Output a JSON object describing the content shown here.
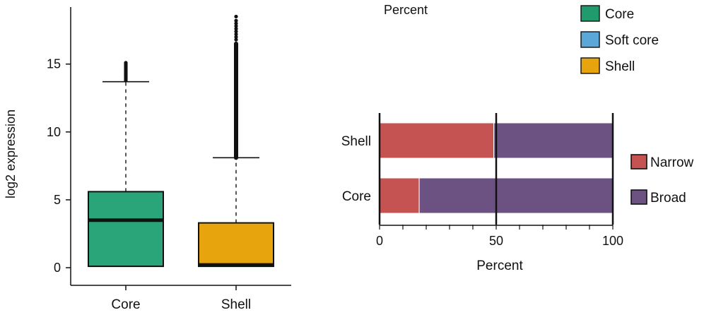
{
  "chart_data": [
    {
      "type": "box",
      "ylabel": "log2 expression",
      "ylim": [
        -1.3,
        19.2
      ],
      "yticks": [
        0,
        5,
        10,
        15
      ],
      "categories": [
        "Core",
        "Shell"
      ],
      "boxes": [
        {
          "name": "Core",
          "color": "#2aa57a",
          "whisker_low": 0.1,
          "q1": 0.1,
          "median": 3.5,
          "q3": 5.6,
          "whisker_high": 13.7,
          "outliers": [
            13.8,
            13.9,
            14.0,
            14.1,
            14.2,
            14.3,
            14.4,
            14.5,
            14.6,
            14.7,
            14.8,
            14.9,
            15.0,
            15.1
          ]
        },
        {
          "name": "Shell",
          "color": "#e8a40c",
          "whisker_low": 0.1,
          "q1": 0.1,
          "median": 0.2,
          "q3": 3.3,
          "whisker_high": 8.1,
          "outliers_dense_range": [
            8.1,
            16.5
          ],
          "outliers": [
            16.8,
            17.0,
            17.2,
            17.4,
            17.6,
            17.8,
            18.0,
            18.2,
            18.5
          ]
        }
      ]
    },
    {
      "type": "bar",
      "orientation": "horizontal",
      "stacked": true,
      "xlabel": "Percent",
      "xlim": [
        0,
        100
      ],
      "xticks": [
        0,
        50,
        100
      ],
      "categories": [
        "Shell",
        "Core"
      ],
      "series": [
        {
          "name": "Narrow",
          "color": "#c55352",
          "values": [
            49,
            17
          ]
        },
        {
          "name": "Broad",
          "color": "#6b5282",
          "values": [
            51,
            83
          ]
        }
      ],
      "legend": [
        {
          "name": "Narrow",
          "color": "#c55352"
        },
        {
          "name": "Broad",
          "color": "#6b5282"
        }
      ]
    }
  ],
  "top_legend": {
    "title": "Percent",
    "items": [
      {
        "name": "Core",
        "color": "#1f9b6d"
      },
      {
        "name": "Soft core",
        "color": "#5aa7d8"
      },
      {
        "name": "Shell",
        "color": "#e8a40c"
      }
    ]
  }
}
